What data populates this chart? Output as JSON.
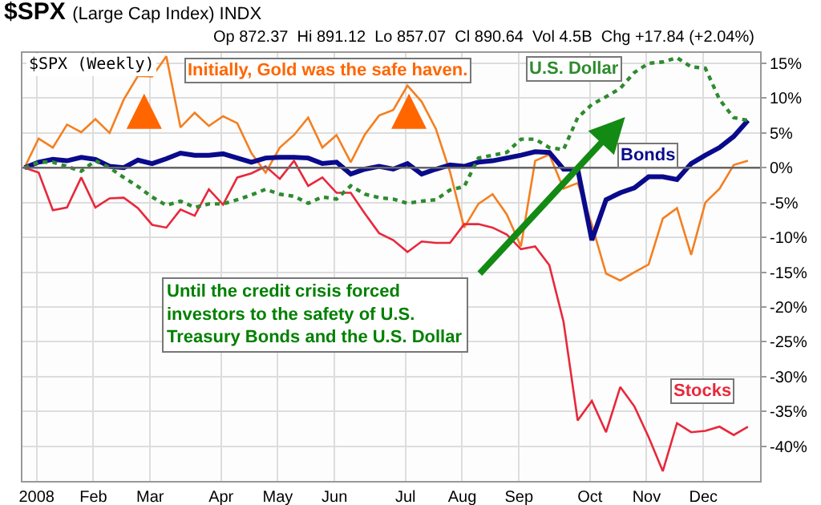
{
  "chart_data": {
    "type": "line",
    "title": "$SPX",
    "subtitle": "(Large Cap Index) INDX",
    "annotations": [
      "Op 872.37  Hi 891.12  Lo 857.07  Cl 890.64  Vol 4.5B  Chg +17.84 (+2.04%)",
      "$SPX (Weekly)",
      "Initially, Gold was the safe haven.",
      "Until the credit crisis forced\ninvestors to the safety of U.S.\nTreasury Bonds and the U.S. Dollar"
    ],
    "x": [
      "2008-01-01",
      "2008-01-08",
      "2008-01-15",
      "2008-01-22",
      "2008-01-29",
      "2008-02-05",
      "2008-02-12",
      "2008-02-19",
      "2008-02-26",
      "2008-03-04",
      "2008-03-11",
      "2008-03-18",
      "2008-03-25",
      "2008-04-01",
      "2008-04-08",
      "2008-04-15",
      "2008-04-22",
      "2008-04-29",
      "2008-05-06",
      "2008-05-13",
      "2008-05-20",
      "2008-05-27",
      "2008-06-03",
      "2008-06-10",
      "2008-06-17",
      "2008-06-24",
      "2008-07-01",
      "2008-07-08",
      "2008-07-15",
      "2008-07-22",
      "2008-07-29",
      "2008-08-05",
      "2008-08-12",
      "2008-08-19",
      "2008-08-26",
      "2008-09-02",
      "2008-09-09",
      "2008-09-16",
      "2008-09-23",
      "2008-09-30",
      "2008-10-07",
      "2008-10-14",
      "2008-10-21",
      "2008-10-28",
      "2008-11-04",
      "2008-11-11",
      "2008-11-18",
      "2008-11-25",
      "2008-12-02",
      "2008-12-09",
      "2008-12-16",
      "2008-12-23"
    ],
    "series": [
      {
        "color": "#f57f20",
        "line_style": "solid",
        "values": [
          0,
          4.2,
          2.9,
          6.2,
          5.1,
          7.0,
          5.0,
          9.8,
          13.2,
          13.1,
          16.0,
          5.8,
          7.9,
          6.0,
          7.4,
          6.4,
          2.1,
          -0.7,
          2.9,
          4.7,
          7.2,
          2.9,
          4.7,
          0.8,
          4.8,
          7.5,
          8.3,
          11.8,
          9.5,
          5.6,
          -0.6,
          -8.6,
          -5.2,
          -3.8,
          -6.7,
          -11.3,
          1.0,
          1.9,
          -3.0,
          -2.2,
          -8.2,
          -15.2,
          -16.2,
          -15.0,
          -13.9,
          -7.3,
          -5.8,
          -12.5,
          -5.0,
          -3.0,
          0.4,
          1.0
        ]
      },
      {
        "name": "U.S. Dollar",
        "color": "#2e8b2e",
        "line_style": "dotted",
        "values": [
          0,
          0.8,
          0.8,
          0.2,
          -0.5,
          1.0,
          0,
          -1.4,
          -2.7,
          -4.2,
          -5.4,
          -4.8,
          -5.7,
          -5.2,
          -5.2,
          -4.6,
          -3.9,
          -3.1,
          -3.8,
          -4.1,
          -5.1,
          -4.2,
          -4.5,
          -2.6,
          -3.8,
          -4.3,
          -4.5,
          -5.1,
          -4.8,
          -4.6,
          -3.2,
          -2.7,
          1.4,
          1.8,
          2.2,
          4.1,
          4.1,
          2.9,
          2.6,
          7.2,
          9.1,
          10.2,
          11.4,
          13.7,
          15.0,
          15.2,
          15.8,
          14.5,
          14.3,
          9.8,
          7.2,
          6.8
        ]
      },
      {
        "name": "Bonds",
        "color": "#0a0a8c",
        "line_style": "solid",
        "values": [
          0,
          0.8,
          1.2,
          1.0,
          1.5,
          1.2,
          0.2,
          0,
          1.1,
          0.6,
          1.3,
          2.1,
          1.8,
          1.8,
          2.0,
          1.4,
          0.8,
          1.4,
          1.5,
          1.5,
          1.4,
          0.6,
          0.8,
          -0.9,
          -0.2,
          0.2,
          -0.2,
          0.6,
          -0.9,
          -0.2,
          0.4,
          0.2,
          0.8,
          1.0,
          1.4,
          1.8,
          2.3,
          2.2,
          -0.2,
          -0.2,
          -10.4,
          -4.6,
          -3.6,
          -2.9,
          -1.3,
          -1.3,
          -1.7,
          0.6,
          1.8,
          2.9,
          4.5,
          6.8
        ]
      },
      {
        "name": "Stocks",
        "color": "#e8283c",
        "line_style": "solid",
        "values": [
          0,
          -0.7,
          -6.1,
          -5.7,
          -1.4,
          -5.7,
          -4.4,
          -4.3,
          -5.8,
          -8.2,
          -8.6,
          -6.0,
          -6.9,
          -3.1,
          -5.3,
          -1.4,
          -0.8,
          0.2,
          -1.6,
          1.0,
          -2.6,
          -1.4,
          -3.6,
          -3.6,
          -6.6,
          -9.4,
          -10.4,
          -12.1,
          -10.6,
          -10.8,
          -10.8,
          -8.1,
          -8.1,
          -8.6,
          -9.6,
          -11.7,
          -11.3,
          -14.0,
          -22.1,
          -36.3,
          -33.5,
          -38.0,
          -31.5,
          -34.3,
          -38.7,
          -43.6,
          -36.7,
          -38.0,
          -37.8,
          -37.2,
          -38.4,
          -37.2
        ]
      }
    ],
    "xlim": [
      "2007-12-31",
      "2008-12-29"
    ],
    "xticks": [
      {
        "value": "2008-01-07",
        "label": "2008"
      },
      {
        "value": "2008-02-04",
        "label": "Feb"
      },
      {
        "value": "2008-03-03",
        "label": "Mar"
      },
      {
        "value": "2008-04-07",
        "label": "Apr"
      },
      {
        "value": "2008-05-05",
        "label": "May"
      },
      {
        "value": "2008-06-02",
        "label": "Jun"
      },
      {
        "value": "2008-07-07",
        "label": "Jul"
      },
      {
        "value": "2008-08-04",
        "label": "Aug"
      },
      {
        "value": "2008-09-01",
        "label": "Sep"
      },
      {
        "value": "2008-10-06",
        "label": "Oct"
      },
      {
        "value": "2008-11-03",
        "label": "Nov"
      },
      {
        "value": "2008-12-01",
        "label": "Dec"
      }
    ],
    "ylim": [
      -45,
      16.5
    ],
    "yticks": [
      {
        "value": -40,
        "label": "-40%"
      },
      {
        "value": -35,
        "label": "-35%"
      },
      {
        "value": -30,
        "label": "-30%"
      },
      {
        "value": -25,
        "label": "-25%"
      },
      {
        "value": -20,
        "label": "-20%"
      },
      {
        "value": -15,
        "label": "-15%"
      },
      {
        "value": -10,
        "label": "-10%"
      },
      {
        "value": -5,
        "label": "-5%"
      },
      {
        "value": 0,
        "label": "0%"
      },
      {
        "value": 5,
        "label": "5%"
      },
      {
        "value": 10,
        "label": "10%"
      },
      {
        "value": 15,
        "label": "15%"
      }
    ],
    "ref_lines": [
      {
        "axis": "y",
        "value": 0,
        "color": "#666666"
      }
    ],
    "grid": true,
    "legend": false,
    "marker": "none"
  }
}
